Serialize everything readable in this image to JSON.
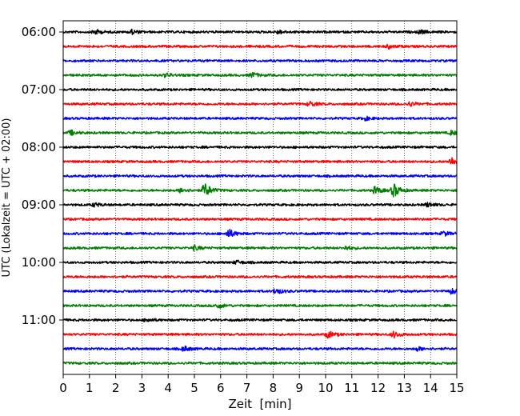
{
  "chart_data": {
    "type": "line",
    "xlabel": "Zeit  [min]",
    "ylabel": "UTC (Lokalzeit = UTC + 02:00)",
    "xlim": [
      0,
      15
    ],
    "x_ticks": [
      "0",
      "1",
      "2",
      "3",
      "4",
      "5",
      "6",
      "7",
      "8",
      "9",
      "10",
      "11",
      "12",
      "13",
      "14",
      "15"
    ],
    "y_ticks": [
      "06:00",
      "07:00",
      "08:00",
      "09:00",
      "10:00",
      "11:00"
    ],
    "trace_interval_minutes": 15,
    "first_trace_start": "06:00",
    "grid": "vertical dotted at each minute",
    "colors": [
      "#000000",
      "#ff0000",
      "#0000ff",
      "#008000"
    ],
    "traces": [
      {
        "start": "06:00",
        "color": "#000000",
        "events": [
          {
            "t": 1.2,
            "amp": 0.35
          },
          {
            "t": 2.6,
            "amp": 0.3
          },
          {
            "t": 8.2,
            "amp": 0.25
          },
          {
            "t": 13.6,
            "amp": 0.25
          }
        ]
      },
      {
        "start": "06:15",
        "color": "#ff0000",
        "events": [
          {
            "t": 12.4,
            "amp": 0.25
          }
        ]
      },
      {
        "start": "06:30",
        "color": "#0000ff",
        "events": []
      },
      {
        "start": "06:45",
        "color": "#008000",
        "events": [
          {
            "t": 3.9,
            "amp": 0.25
          },
          {
            "t": 7.2,
            "amp": 0.35
          }
        ]
      },
      {
        "start": "07:00",
        "color": "#000000",
        "events": []
      },
      {
        "start": "07:15",
        "color": "#ff0000",
        "events": [
          {
            "t": 9.4,
            "amp": 0.35
          },
          {
            "t": 13.2,
            "amp": 0.3
          }
        ]
      },
      {
        "start": "07:30",
        "color": "#0000ff",
        "events": [
          {
            "t": 11.5,
            "amp": 0.25
          }
        ]
      },
      {
        "start": "07:45",
        "color": "#008000",
        "events": [
          {
            "t": 0.3,
            "amp": 0.3
          },
          {
            "t": 14.8,
            "amp": 0.3
          }
        ]
      },
      {
        "start": "08:00",
        "color": "#000000",
        "events": []
      },
      {
        "start": "08:15",
        "color": "#ff0000",
        "events": [
          {
            "t": 14.8,
            "amp": 0.6
          }
        ]
      },
      {
        "start": "08:30",
        "color": "#0000ff",
        "events": []
      },
      {
        "start": "08:45",
        "color": "#008000",
        "events": [
          {
            "t": 4.5,
            "amp": 0.35
          },
          {
            "t": 5.4,
            "amp": 1.0
          },
          {
            "t": 11.9,
            "amp": 0.5
          },
          {
            "t": 12.6,
            "amp": 0.9
          }
        ]
      },
      {
        "start": "09:00",
        "color": "#000000",
        "events": [
          {
            "t": 1.2,
            "amp": 0.25
          },
          {
            "t": 13.9,
            "amp": 0.3
          }
        ]
      },
      {
        "start": "09:15",
        "color": "#ff0000",
        "events": []
      },
      {
        "start": "09:30",
        "color": "#0000ff",
        "events": [
          {
            "t": 6.3,
            "amp": 0.6
          },
          {
            "t": 14.5,
            "amp": 0.3
          }
        ]
      },
      {
        "start": "09:45",
        "color": "#008000",
        "events": [
          {
            "t": 5.0,
            "amp": 0.3
          },
          {
            "t": 10.8,
            "amp": 0.25
          }
        ]
      },
      {
        "start": "10:00",
        "color": "#000000",
        "events": [
          {
            "t": 6.6,
            "amp": 0.25
          }
        ]
      },
      {
        "start": "10:15",
        "color": "#ff0000",
        "events": []
      },
      {
        "start": "10:30",
        "color": "#0000ff",
        "events": [
          {
            "t": 8.1,
            "amp": 0.4
          },
          {
            "t": 14.8,
            "amp": 0.35
          }
        ]
      },
      {
        "start": "10:45",
        "color": "#008000",
        "events": [
          {
            "t": 5.9,
            "amp": 0.35
          }
        ]
      },
      {
        "start": "11:00",
        "color": "#000000",
        "events": [
          {
            "t": 3.2,
            "amp": 0.25
          }
        ]
      },
      {
        "start": "11:15",
        "color": "#ff0000",
        "events": [
          {
            "t": 10.1,
            "amp": 0.45
          },
          {
            "t": 12.6,
            "amp": 0.4
          }
        ]
      },
      {
        "start": "11:30",
        "color": "#0000ff",
        "events": [
          {
            "t": 4.6,
            "amp": 0.35
          },
          {
            "t": 13.5,
            "amp": 0.25
          }
        ]
      },
      {
        "start": "11:45",
        "color": "#008000",
        "events": []
      }
    ]
  }
}
